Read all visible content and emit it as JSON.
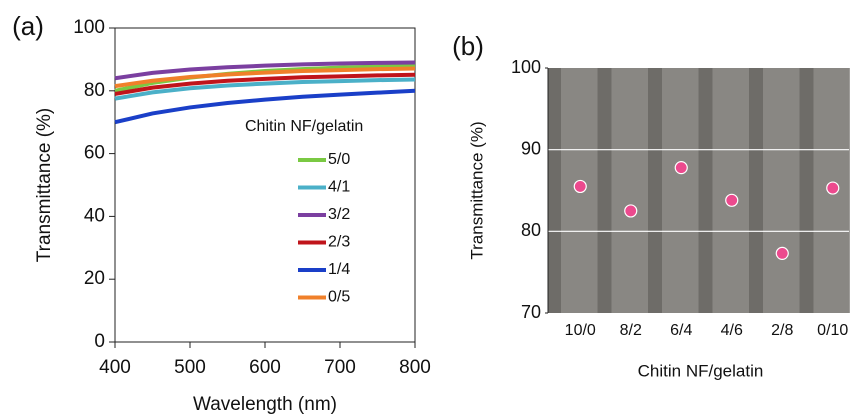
{
  "chart_data": [
    {
      "type": "line",
      "label": "(a)",
      "xlabel": "Wavelength (nm)",
      "ylabel": "Transmittance (%)",
      "x": [
        400,
        450,
        500,
        550,
        600,
        650,
        700,
        750,
        800
      ],
      "xlim": [
        400,
        800
      ],
      "xticks": [
        400,
        500,
        600,
        700,
        800
      ],
      "ylim": [
        0,
        100
      ],
      "yticks": [
        0,
        20,
        40,
        60,
        80,
        100
      ],
      "legend_title": "Chitin NF/gelatin",
      "series": [
        {
          "name": "5/0",
          "color": "#7ac943",
          "values": [
            80,
            82.5,
            84.2,
            85.4,
            86.3,
            86.9,
            87.4,
            87.7,
            88
          ]
        },
        {
          "name": "4/1",
          "color": "#4bb0c8",
          "values": [
            77.5,
            79.5,
            80.8,
            81.7,
            82.3,
            82.8,
            83.1,
            83.4,
            83.6
          ]
        },
        {
          "name": "3/2",
          "color": "#7b3fa0",
          "values": [
            84,
            85.7,
            86.8,
            87.5,
            88,
            88.4,
            88.7,
            88.9,
            89
          ]
        },
        {
          "name": "2/3",
          "color": "#c0141b",
          "values": [
            79,
            81,
            82.3,
            83.2,
            83.8,
            84.3,
            84.6,
            84.9,
            85.1
          ]
        },
        {
          "name": "1/4",
          "color": "#1a3fc8",
          "values": [
            70,
            72.8,
            74.7,
            76.1,
            77.2,
            78.1,
            78.8,
            79.4,
            80
          ]
        },
        {
          "name": "0/5",
          "color": "#f0802a",
          "values": [
            81.5,
            83.2,
            84.4,
            85.2,
            85.8,
            86.3,
            86.6,
            86.9,
            87.1
          ]
        }
      ]
    },
    {
      "type": "scatter",
      "label": "(b)",
      "xlabel": "Chitin NF/gelatin",
      "ylabel": "Transmittance (%)",
      "categories": [
        "10/0",
        "8/2",
        "6/4",
        "4/6",
        "2/8",
        "0/10"
      ],
      "values": [
        85.5,
        82.5,
        87.8,
        83.8,
        77.3,
        85.3
      ],
      "color": "#ec4a8e",
      "ylim": [
        70,
        100
      ],
      "yticks": [
        70,
        80,
        90,
        100
      ],
      "grid": true
    }
  ]
}
